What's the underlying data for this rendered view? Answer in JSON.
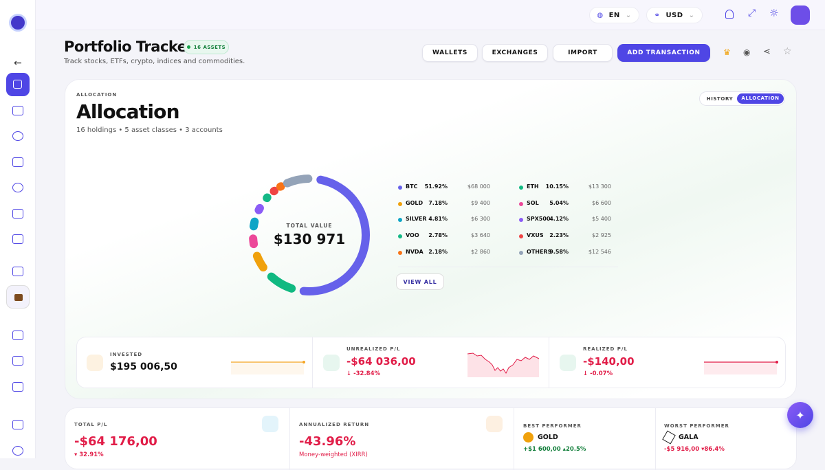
{
  "topbar": {
    "language": "EN",
    "currency": "USD"
  },
  "header": {
    "title": "Portfolio Tracker",
    "badge": "16 ASSETS",
    "subtitle": "Track stocks, ETFs, crypto, indices and commodities.",
    "buttons": [
      "WALLETS",
      "EXCHANGES",
      "IMPORT",
      "ADD TRANSACTION"
    ]
  },
  "allocation": {
    "eyebrow": "ALLOCATION",
    "title": "Allocation",
    "summary": "16 holdings • 5 asset classes • 3 accounts",
    "tabs": [
      "HISTORY",
      "ALLOCATION"
    ],
    "total_label": "TOTAL VALUE",
    "total": "$130 971",
    "view_all": "VIEW ALL",
    "chart_data": {
      "type": "donut",
      "categories": [
        "BTC",
        "ETH",
        "GOLD",
        "SOL",
        "SILVER",
        "SPX500",
        "VOO",
        "VXUS",
        "NVDA",
        "OTHERS"
      ],
      "values": [
        51.92,
        10.15,
        7.18,
        5.04,
        4.81,
        4.12,
        2.78,
        2.23,
        2.18,
        9.58
      ],
      "value_labels": [
        "51.92%",
        "10.15%",
        "7.18%",
        "5.04%",
        "4.81%",
        "4.12%",
        "2.78%",
        "2.23%",
        "2.18%",
        "9.58%"
      ],
      "colors": [
        "#6661ea",
        "#10b981",
        "#f0a10c",
        "#ec4899",
        "#0ea5c6",
        "#8b5cf6",
        "#14b886",
        "#ef4444",
        "#f97316",
        "#94a3b8"
      ]
    },
    "amounts": [
      "$68 000",
      "$13 300",
      "$9 400",
      "$6 600",
      "$6 300",
      "$5 400",
      "$3 640",
      "$2 925",
      "$2 860",
      "$12 546"
    ]
  },
  "stats": [
    {
      "label": "INVESTED",
      "value": "$195 006,50"
    },
    {
      "label": "UNREALIZED P/L",
      "value": "-$64 036,00",
      "change": "-32.84%"
    },
    {
      "label": "REALIZED P/L",
      "value": "-$140,00",
      "change": "-0.07%"
    }
  ],
  "metrics": {
    "total_pl": {
      "label": "TOTAL P/L",
      "value": "-$64 176,00",
      "change": "32.91%"
    },
    "annualized": {
      "label": "ANNUALIZED RETURN",
      "value": "-43.96%",
      "note": "Money-weighted (XIRR)"
    },
    "best": {
      "label": "BEST PERFORMER",
      "name": "GOLD",
      "amount": "+$1 600,00",
      "change": "20.5%"
    },
    "worst": {
      "label": "WORST PERFORMER",
      "name": "GALA",
      "amount": "-$5 916,00",
      "change": "86.4%"
    }
  }
}
